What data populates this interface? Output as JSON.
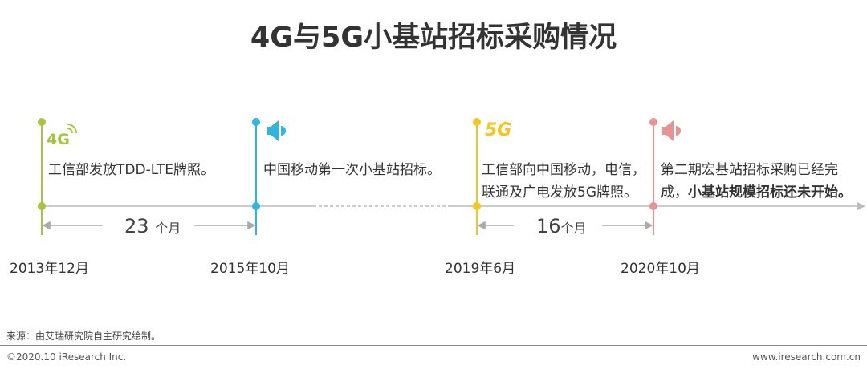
{
  "title": "4G与5G小基站招标采购情况",
  "colors": {
    "green": "#a9c53c",
    "blue": "#2db5e3",
    "yellow": "#f6c61d",
    "pink": "#ea9191",
    "axis": "#bbbbbb"
  },
  "events": [
    {
      "icon": "4g-signal-icon",
      "icon_text": "4G",
      "text": [
        "工信部发放TDD-LTE牌照。"
      ],
      "date": "2013年12月"
    },
    {
      "icon": "speaker-icon",
      "text": [
        "中国移动第一次小基站招标。"
      ],
      "date": "2015年10月"
    },
    {
      "icon": "5g-signal-icon",
      "icon_text": "5G",
      "text": [
        "工信部向中国移动，电信，",
        "联通及广电发放5G牌照。"
      ],
      "date": "2019年6月"
    },
    {
      "icon": "speaker-icon",
      "text": [
        "第二期宏基站招标采购已经完",
        "成，"
      ],
      "text_bold": "小基站规模招标还未开始。",
      "date": "2020年10月"
    }
  ],
  "durations": [
    {
      "num": "23",
      "unit": "个月"
    },
    {
      "num": "16",
      "unit": "个月"
    }
  ],
  "source": "来源：由艾瑞研究院自主研究绘制。",
  "copyright": "©2020.10 iResearch Inc.",
  "website": "www.iresearch.com.cn"
}
